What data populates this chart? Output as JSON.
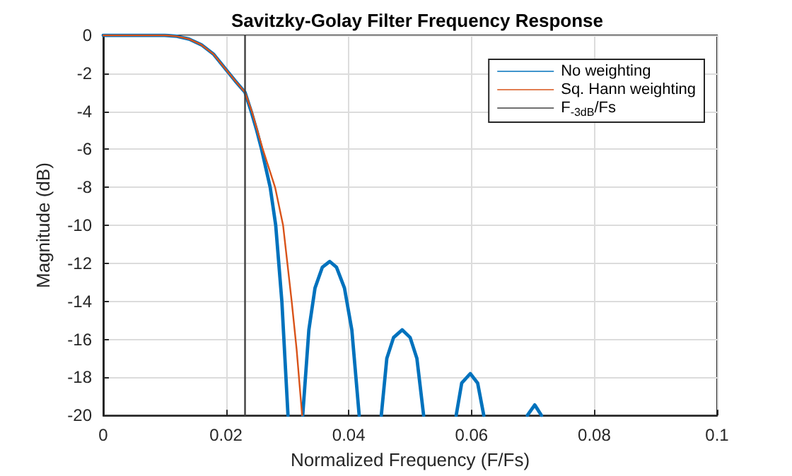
{
  "chart_data": {
    "type": "line",
    "title": "Savitzky-Golay Filter Frequency Response",
    "xlabel": "Normalized Frequency (F/Fs)",
    "ylabel": "Magnitude (dB)",
    "xlim": [
      0,
      0.1
    ],
    "xticks": [
      0,
      0.02,
      0.04,
      0.06,
      0.08,
      0.1
    ],
    "ylim": [
      -20,
      0
    ],
    "yticks": [
      -20,
      -18,
      -16,
      -14,
      -12,
      -10,
      -8,
      -6,
      -4,
      -2,
      0
    ],
    "grid": true,
    "legend": "top right",
    "marker": "none",
    "line_style": "solid",
    "series": [
      {
        "name": "No weighting",
        "color": "#0072bd",
        "x": [
          0,
          0.005,
          0.01,
          0.012,
          0.014,
          0.016,
          0.018,
          0.02,
          0.0215,
          0.0231,
          0.0241,
          0.025,
          0.0258,
          0.0265,
          0.0272,
          0.0281,
          0.0291,
          0.0301,
          0.0313,
          0.0325,
          0.0335,
          0.0345,
          0.0357,
          0.0369,
          0.038,
          0.0393,
          0.0405,
          0.0417,
          0.0435,
          0.0453,
          0.0462,
          0.0473,
          0.0487,
          0.05,
          0.0511,
          0.0522,
          0.055,
          0.0575,
          0.0584,
          0.0598,
          0.061,
          0.062,
          0.065,
          0.0691,
          0.0703,
          0.0714
        ],
        "values": [
          0,
          0,
          0,
          -0.05,
          -0.2,
          -0.5,
          -1.0,
          -1.8,
          -2.4,
          -3,
          -4,
          -5,
          -6,
          -7,
          -8,
          -10,
          -14,
          -20,
          null,
          -20,
          -15.5,
          -13.3,
          -12.2,
          -11.9,
          -12.2,
          -13.3,
          -15.5,
          -20,
          null,
          -20,
          -17,
          -15.9,
          -15.5,
          -15.9,
          -17,
          -20,
          null,
          -20,
          -18.3,
          -17.8,
          -18.3,
          -20,
          null,
          -20,
          -19.45,
          -20
        ]
      },
      {
        "name": "Sq. Hann weighting",
        "color": "#d95319",
        "x": [
          0,
          0.005,
          0.01,
          0.012,
          0.014,
          0.016,
          0.018,
          0.02,
          0.0215,
          0.0231,
          0.0242,
          0.0251,
          0.026,
          0.027,
          0.028,
          0.0293,
          0.0307,
          0.0315,
          0.0324
        ],
        "values": [
          0,
          0,
          0,
          -0.05,
          -0.2,
          -0.5,
          -1,
          -1.8,
          -2.4,
          -3,
          -4,
          -5,
          -6,
          -7,
          -8,
          -10,
          -14,
          -16.5,
          -20
        ]
      },
      {
        "name": "F$_{-3dB}$/Fs",
        "color": "#404040",
        "x": [
          0.0231,
          0.0231
        ],
        "values": [
          -20,
          0
        ]
      }
    ]
  }
}
